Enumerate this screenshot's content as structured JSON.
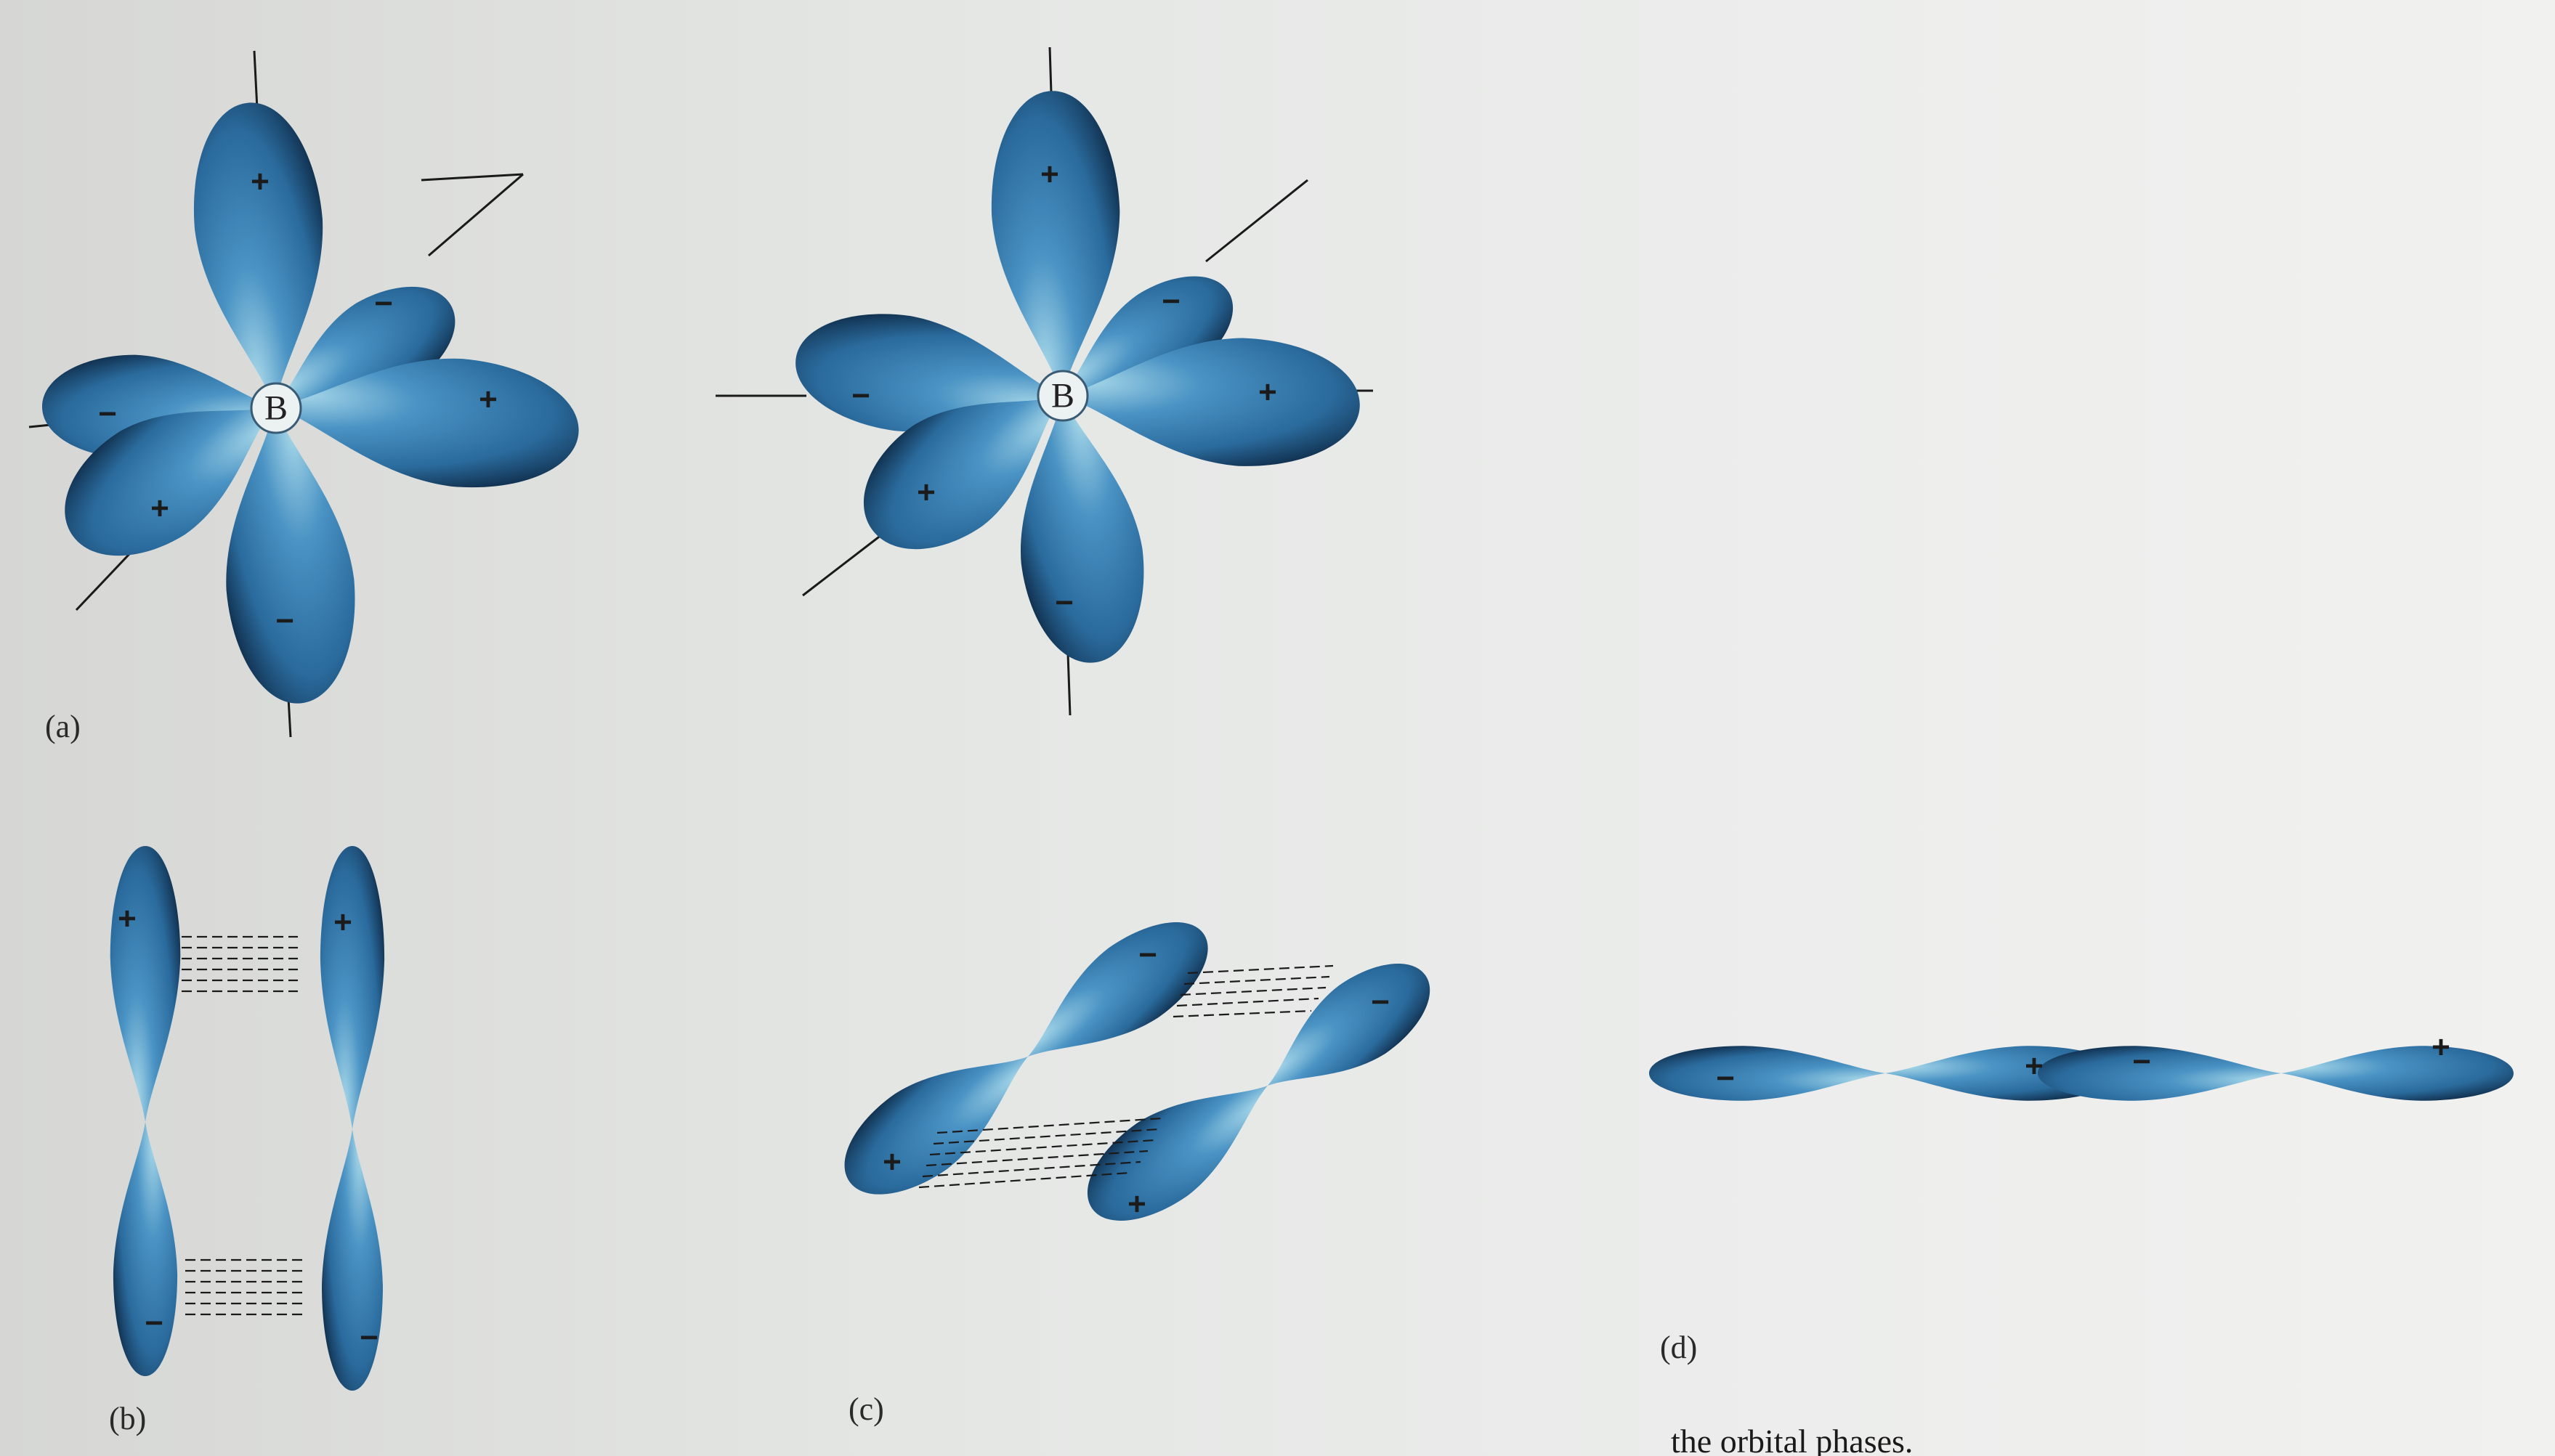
{
  "panels": {
    "a": {
      "label": "(a)",
      "left": {
        "atom": "B",
        "signs": [
          "+",
          "−",
          "−",
          "+",
          "+",
          "−"
        ]
      },
      "right": {
        "atom": "B",
        "signs": [
          "+",
          "−",
          "−",
          "+",
          "+",
          "−"
        ]
      }
    },
    "b": {
      "label": "(b)",
      "signs": [
        "+",
        "+",
        "−",
        "−"
      ]
    },
    "c": {
      "label": "(c)",
      "signs": [
        "−",
        "−",
        "+",
        "+"
      ]
    },
    "d": {
      "label": "(d)",
      "signs": [
        "−",
        "+",
        "−",
        "+"
      ]
    }
  },
  "caption_fragment": "the orbital phases.",
  "colors": {
    "lobe_light": "#9fd3e6",
    "lobe_mid": "#3f86ba",
    "lobe_dark": "#123a5c"
  }
}
